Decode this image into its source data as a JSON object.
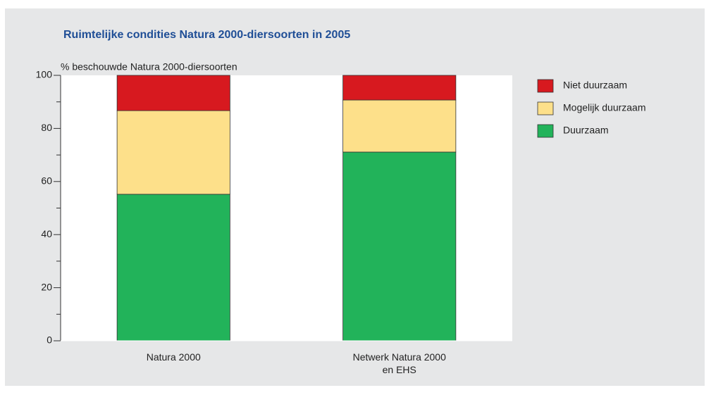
{
  "chart_data": {
    "type": "stacked_bar",
    "title": "Ruimtelijke condities Natura 2000-diersoorten in 2005",
    "y_label": "% beschouwde Natura 2000-diersoorten",
    "categories": [
      "Natura 2000",
      "Netwerk Natura 2000\nen EHS"
    ],
    "series": [
      {
        "name": "Duurzaam",
        "color": "#22b35a",
        "values": [
          55.2,
          71.1
        ]
      },
      {
        "name": "Mogelijk duurzaam",
        "color": "#fde08a",
        "values": [
          31.5,
          19.6
        ]
      },
      {
        "name": "Niet duurzaam",
        "color": "#d7191f",
        "values": [
          13.3,
          9.3
        ]
      }
    ],
    "ylim": [
      0,
      100
    ],
    "yticks": [
      0,
      20,
      40,
      60,
      80,
      100
    ],
    "yticks_minor": [
      10,
      30,
      50,
      70,
      90
    ],
    "legend": "right"
  }
}
